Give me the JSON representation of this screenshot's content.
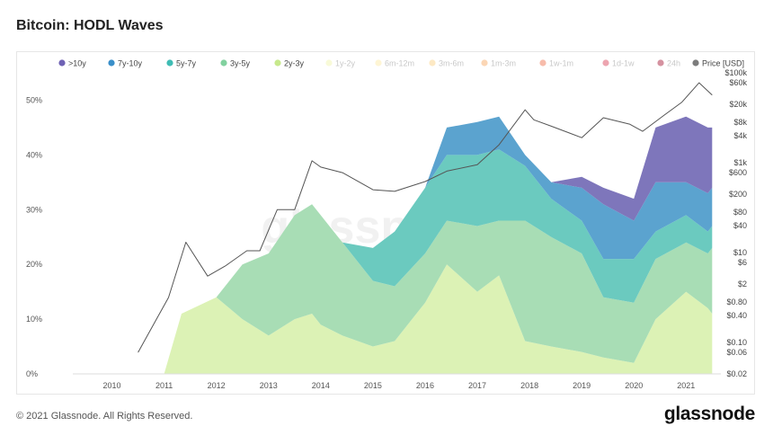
{
  "page": {
    "title": "Bitcoin: HODL Waves",
    "footer": "© 2021 Glassnode. All Rights Reserved.",
    "logo": "glassnode",
    "watermark": "glassnode"
  },
  "chart_data": {
    "type": "area",
    "stacked": true,
    "x": [
      "2010-06",
      "2011-01",
      "2011-05",
      "2012-01",
      "2012-07",
      "2013-01",
      "2013-07",
      "2013-11",
      "2014-01",
      "2014-06",
      "2015-01",
      "2015-06",
      "2016-01",
      "2016-06",
      "2017-01",
      "2017-06",
      "2017-12",
      "2018-06",
      "2019-01",
      "2019-06",
      "2020-01",
      "2020-06",
      "2021-01",
      "2021-06",
      "2021-07"
    ],
    "x_ticks": [
      "2010",
      "2011",
      "2012",
      "2013",
      "2014",
      "2015",
      "2016",
      "2017",
      "2018",
      "2019",
      "2020",
      "2021"
    ],
    "x_tick_positions": [
      "2010-01",
      "2011-01",
      "2012-01",
      "2013-01",
      "2014-01",
      "2015-01",
      "2016-01",
      "2017-01",
      "2018-01",
      "2019-01",
      "2020-01",
      "2021-01"
    ],
    "ylim": [
      0,
      55
    ],
    "y_ticks": [
      0,
      10,
      20,
      30,
      40,
      50
    ],
    "y_tick_labels": [
      "0%",
      "10%",
      "20%",
      "30%",
      "40%",
      "50%"
    ],
    "y2_ticks": [
      0.02,
      0.06,
      0.1,
      0.4,
      0.8,
      2,
      6,
      10,
      40,
      80,
      200,
      600,
      1000,
      4000,
      8000,
      20000,
      60000,
      100000
    ],
    "y2_tick_labels": [
      "$0.02",
      "$0.06",
      "$0.10",
      "$0.40",
      "$0.80",
      "$2",
      "$6",
      "$10",
      "$40",
      "$80",
      "$200",
      "$600",
      "$1k",
      "$4k",
      "$8k",
      "$20k",
      "$60k",
      "$100k"
    ],
    "y2_scale": "log",
    "grid": false,
    "legend_position": "top",
    "series": [
      {
        "name": "2y-3y",
        "color": "#dcf2b5",
        "values": [
          0,
          0,
          11,
          14,
          10,
          7,
          10,
          11,
          9,
          7,
          5,
          6,
          13,
          20,
          15,
          18,
          6,
          5,
          4,
          3,
          2,
          10,
          15,
          12,
          11
        ]
      },
      {
        "name": "3y-5y",
        "color": "#a8ddb5",
        "values": [
          0,
          0,
          0,
          0,
          10,
          15,
          19,
          20,
          20,
          17,
          12,
          10,
          9,
          8,
          12,
          10,
          22,
          20,
          18,
          11,
          11,
          11,
          9,
          10,
          12
        ]
      },
      {
        "name": "5y-7y",
        "color": "#6bcabf",
        "values": [
          0,
          0,
          0,
          0,
          0,
          0,
          0,
          0,
          0,
          0,
          6,
          10,
          12,
          12,
          13,
          13,
          10,
          7,
          6,
          7,
          8,
          5,
          5,
          4,
          4
        ]
      },
      {
        "name": "7y-10y",
        "color": "#5ba3cf",
        "values": [
          0,
          0,
          0,
          0,
          0,
          0,
          0,
          0,
          0,
          0,
          0,
          0,
          0,
          5,
          6,
          6,
          2,
          3,
          6,
          10,
          7,
          9,
          6,
          7,
          7
        ]
      },
      {
        "name": ">10y",
        "color": "#7e76bb",
        "values": [
          0,
          0,
          0,
          0,
          0,
          0,
          0,
          0,
          0,
          0,
          0,
          0,
          0,
          0,
          0,
          0,
          0,
          0,
          2,
          3,
          4,
          10,
          12,
          12,
          11
        ]
      }
    ],
    "legend": [
      {
        "name": ">10y",
        "color": "#6f62b4",
        "active": true
      },
      {
        "name": "7y-10y",
        "color": "#3a8fc9",
        "active": true
      },
      {
        "name": "5y-7y",
        "color": "#3fbcb4",
        "active": true
      },
      {
        "name": "3y-5y",
        "color": "#82d19f",
        "active": true
      },
      {
        "name": "2y-3y",
        "color": "#c7e98c",
        "active": true
      },
      {
        "name": "1y-2y",
        "color": "#f0f5a8",
        "active": false
      },
      {
        "name": "6m-12m",
        "color": "#fde9a0",
        "active": false
      },
      {
        "name": "3m-6m",
        "color": "#fbcf7d",
        "active": false
      },
      {
        "name": "1m-3m",
        "color": "#f6a35c",
        "active": false
      },
      {
        "name": "1w-1m",
        "color": "#ee6b45",
        "active": false
      },
      {
        "name": "1d-1w",
        "color": "#d8384f",
        "active": false
      },
      {
        "name": "24h",
        "color": "#a10d2c",
        "active": false
      },
      {
        "name": "Price [USD]",
        "color": "#7c7c7c",
        "active": true
      }
    ],
    "price": {
      "name": "Price [USD]",
      "color": "#555555",
      "x": [
        "2010-07",
        "2010-11",
        "2011-02",
        "2011-06",
        "2011-11",
        "2012-03",
        "2012-08",
        "2012-11",
        "2013-03",
        "2013-07",
        "2013-11",
        "2014-01",
        "2014-06",
        "2015-01",
        "2015-06",
        "2016-01",
        "2016-06",
        "2017-01",
        "2017-06",
        "2017-12",
        "2018-02",
        "2018-06",
        "2019-01",
        "2019-06",
        "2019-12",
        "2020-03",
        "2020-08",
        "2020-12",
        "2021-04",
        "2021-07"
      ],
      "values": [
        0.06,
        0.3,
        1,
        17,
        3,
        5,
        11,
        11,
        90,
        90,
        1100,
        800,
        600,
        250,
        230,
        380,
        650,
        900,
        2500,
        15000,
        9000,
        6500,
        3600,
        10000,
        7200,
        5000,
        11500,
        22000,
        60000,
        32000
      ]
    }
  }
}
